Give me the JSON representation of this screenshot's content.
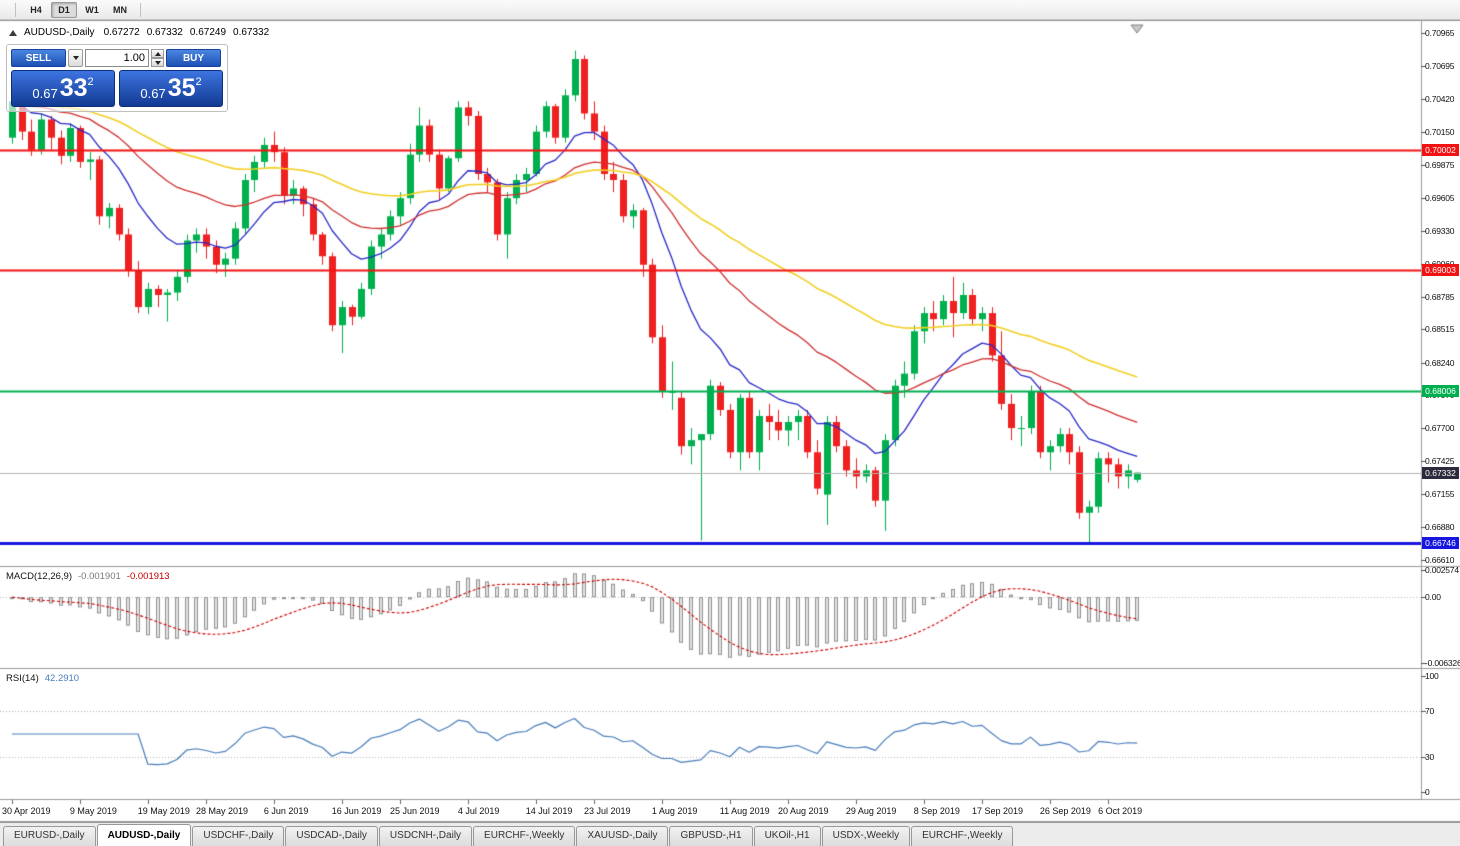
{
  "toolbar": {
    "timeframes": [
      {
        "label": "H4",
        "active": false
      },
      {
        "label": "D1",
        "active": true
      },
      {
        "label": "W1",
        "active": false
      },
      {
        "label": "MN",
        "active": false
      }
    ]
  },
  "chart": {
    "title": "AUDUSD-,Daily",
    "ohlc": {
      "open": "0.67272",
      "high": "0.67332",
      "low": "0.67249",
      "close": "0.67332"
    },
    "trade_panel": {
      "sell_label": "SELL",
      "buy_label": "BUY",
      "volume": "1.00",
      "sell_price": {
        "prefix": "0.67",
        "pips": "33",
        "point": "2"
      },
      "buy_price": {
        "prefix": "0.67",
        "pips": "35",
        "point": "2"
      }
    },
    "price_axis_labels": [
      "0.70965",
      "0.70695",
      "0.70420",
      "0.70150",
      "0.69875",
      "0.69605",
      "0.69330",
      "0.69060",
      "0.68785",
      "0.68515",
      "0.68240",
      "0.67970",
      "0.67700",
      "0.67425",
      "0.67155",
      "0.66880",
      "0.66610"
    ],
    "hlines": [
      {
        "price": 0.70002,
        "label": "0.70002",
        "color": "#f31212",
        "width": 2
      },
      {
        "price": 0.69003,
        "label": "0.69003",
        "color": "#f31212",
        "width": 2
      },
      {
        "price": 0.68006,
        "label": "0.68006",
        "color": "#00b050",
        "width": 2
      },
      {
        "price": 0.66746,
        "label": "0.66746",
        "color": "#1616e0",
        "width": 3
      }
    ],
    "bid": {
      "price": 0.67332,
      "label": "0.67332",
      "line_color": "#b4b4b4",
      "badge_color": "#2b2b3d"
    }
  },
  "indicators": {
    "macd": {
      "label": "MACD(12,26,9)",
      "value1": "-0.001901",
      "value2": "-0.001913",
      "axis_labels": [
        {
          "value": 0.002574,
          "label": "0.002574"
        },
        {
          "value": 0,
          "label": "0.00"
        },
        {
          "value": -0.006326,
          "label": "-0.006326"
        }
      ]
    },
    "rsi": {
      "label": "RSI(14)",
      "value": "42.2910",
      "levels": [
        70,
        30
      ],
      "axis_labels": [
        {
          "value": 100,
          "label": "100"
        },
        {
          "value": 70,
          "label": "70"
        },
        {
          "value": 30,
          "label": "30"
        },
        {
          "value": 0,
          "label": "0"
        }
      ]
    }
  },
  "chart_data": {
    "type": "candlestick",
    "title": "AUDUSD-,Daily",
    "symbol": "AUDUSD",
    "timeframe": "Daily",
    "visible_price_range": [
      0.6656,
      0.7106
    ],
    "macd": {
      "fast": 12,
      "slow": 26,
      "signal": 9
    },
    "rsi_period": 14,
    "moving_averages": [
      {
        "name": "ma-fast",
        "type": "ema",
        "period": 12,
        "color": "#2929c8"
      },
      {
        "name": "ma-mid",
        "type": "ema",
        "period": 30,
        "color": "#d03030"
      },
      {
        "name": "ma-slow",
        "type": "ema",
        "period": 60,
        "color": "#f2d024"
      }
    ],
    "date_labels": [
      {
        "label": "30 Apr 2019",
        "index": 0
      },
      {
        "label": "9 May 2019",
        "index": 7
      },
      {
        "label": "19 May 2019",
        "index": 14
      },
      {
        "label": "28 May 2019",
        "index": 20
      },
      {
        "label": "6 Jun 2019",
        "index": 27
      },
      {
        "label": "16 Jun 2019",
        "index": 34
      },
      {
        "label": "25 Jun 2019",
        "index": 40
      },
      {
        "label": "4 Jul 2019",
        "index": 47
      },
      {
        "label": "14 Jul 2019",
        "index": 54
      },
      {
        "label": "23 Jul 2019",
        "index": 60
      },
      {
        "label": "1 Aug 2019",
        "index": 67
      },
      {
        "label": "11 Aug 2019",
        "index": 74
      },
      {
        "label": "20 Aug 2019",
        "index": 80
      },
      {
        "label": "29 Aug 2019",
        "index": 87
      },
      {
        "label": "8 Sep 2019",
        "index": 94
      },
      {
        "label": "17 Sep 2019",
        "index": 100
      },
      {
        "label": "26 Sep 2019",
        "index": 107
      },
      {
        "label": "6 Oct 2019",
        "index": 113
      }
    ],
    "candles": [
      [
        0.701,
        0.7048,
        0.7005,
        0.704
      ],
      [
        0.704,
        0.7045,
        0.7008,
        0.7015
      ],
      [
        0.7015,
        0.7025,
        0.6995,
        0.7
      ],
      [
        0.7,
        0.703,
        0.6996,
        0.7025
      ],
      [
        0.7025,
        0.7028,
        0.7,
        0.701
      ],
      [
        0.701,
        0.7016,
        0.6988,
        0.6995
      ],
      [
        0.6995,
        0.7022,
        0.699,
        0.7018
      ],
      [
        0.7018,
        0.702,
        0.6985,
        0.699
      ],
      [
        0.699,
        0.6998,
        0.6975,
        0.6992
      ],
      [
        0.6992,
        0.6995,
        0.6938,
        0.6945
      ],
      [
        0.6945,
        0.6956,
        0.6935,
        0.6952
      ],
      [
        0.6952,
        0.6955,
        0.6925,
        0.693
      ],
      [
        0.693,
        0.6935,
        0.6895,
        0.69
      ],
      [
        0.69,
        0.6908,
        0.6865,
        0.687
      ],
      [
        0.687,
        0.689,
        0.6864,
        0.6885
      ],
      [
        0.6885,
        0.6888,
        0.687,
        0.688
      ],
      [
        0.688,
        0.6885,
        0.6858,
        0.6882
      ],
      [
        0.6882,
        0.69,
        0.6875,
        0.6895
      ],
      [
        0.6895,
        0.693,
        0.689,
        0.6925
      ],
      [
        0.6925,
        0.6935,
        0.6915,
        0.693
      ],
      [
        0.693,
        0.6935,
        0.691,
        0.692
      ],
      [
        0.692,
        0.6925,
        0.6898,
        0.6905
      ],
      [
        0.6905,
        0.6915,
        0.6895,
        0.691
      ],
      [
        0.691,
        0.694,
        0.6905,
        0.6935
      ],
      [
        0.6935,
        0.698,
        0.693,
        0.6975
      ],
      [
        0.6975,
        0.6995,
        0.6965,
        0.699
      ],
      [
        0.699,
        0.701,
        0.6985,
        0.7004
      ],
      [
        0.7004,
        0.7015,
        0.699,
        0.6998
      ],
      [
        0.6998,
        0.7002,
        0.6955,
        0.6962
      ],
      [
        0.6962,
        0.6975,
        0.6955,
        0.6968
      ],
      [
        0.6968,
        0.697,
        0.6945,
        0.6955
      ],
      [
        0.6955,
        0.696,
        0.6925,
        0.693
      ],
      [
        0.693,
        0.6932,
        0.6905,
        0.6912
      ],
      [
        0.6912,
        0.6915,
        0.685,
        0.6855
      ],
      [
        0.6855,
        0.6875,
        0.6832,
        0.687
      ],
      [
        0.687,
        0.6872,
        0.6855,
        0.6862
      ],
      [
        0.6862,
        0.689,
        0.686,
        0.6885
      ],
      [
        0.6885,
        0.6925,
        0.688,
        0.692
      ],
      [
        0.692,
        0.6935,
        0.691,
        0.693
      ],
      [
        0.693,
        0.695,
        0.6925,
        0.6945
      ],
      [
        0.6945,
        0.6965,
        0.6938,
        0.696
      ],
      [
        0.696,
        0.7005,
        0.6955,
        0.6996
      ],
      [
        0.6996,
        0.7035,
        0.699,
        0.702
      ],
      [
        0.702,
        0.7025,
        0.699,
        0.6996
      ],
      [
        0.6996,
        0.7,
        0.6958,
        0.6968
      ],
      [
        0.6968,
        0.6995,
        0.6965,
        0.6993
      ],
      [
        0.6993,
        0.704,
        0.699,
        0.7035
      ],
      [
        0.7035,
        0.704,
        0.702,
        0.7028
      ],
      [
        0.7028,
        0.7032,
        0.6975,
        0.698
      ],
      [
        0.698,
        0.6985,
        0.6965,
        0.6973
      ],
      [
        0.6973,
        0.6976,
        0.6925,
        0.693
      ],
      [
        0.693,
        0.6965,
        0.691,
        0.696
      ],
      [
        0.696,
        0.698,
        0.6955,
        0.6975
      ],
      [
        0.6975,
        0.6985,
        0.6965,
        0.698
      ],
      [
        0.698,
        0.702,
        0.6978,
        0.7015
      ],
      [
        0.7015,
        0.704,
        0.701,
        0.7036
      ],
      [
        0.7036,
        0.7038,
        0.7005,
        0.701
      ],
      [
        0.701,
        0.705,
        0.7006,
        0.7045
      ],
      [
        0.7045,
        0.7082,
        0.704,
        0.7075
      ],
      [
        0.7075,
        0.7078,
        0.7025,
        0.703
      ],
      [
        0.703,
        0.704,
        0.7008,
        0.7015
      ],
      [
        0.7015,
        0.702,
        0.6975,
        0.698
      ],
      [
        0.698,
        0.699,
        0.6965,
        0.6975
      ],
      [
        0.6975,
        0.698,
        0.694,
        0.6945
      ],
      [
        0.6945,
        0.6955,
        0.6935,
        0.695
      ],
      [
        0.695,
        0.6952,
        0.6895,
        0.6905
      ],
      [
        0.6905,
        0.691,
        0.684,
        0.6845
      ],
      [
        0.6845,
        0.6855,
        0.6795,
        0.68
      ],
      [
        0.68,
        0.6825,
        0.6785,
        0.68
      ],
      [
        0.6795,
        0.68,
        0.6748,
        0.6755
      ],
      [
        0.6755,
        0.677,
        0.674,
        0.676
      ],
      [
        0.676,
        0.6765,
        0.6677,
        0.6765
      ],
      [
        0.6765,
        0.681,
        0.676,
        0.6805
      ],
      [
        0.6805,
        0.6808,
        0.678,
        0.6785
      ],
      [
        0.6785,
        0.679,
        0.6745,
        0.675
      ],
      [
        0.675,
        0.6798,
        0.6735,
        0.6795
      ],
      [
        0.6795,
        0.68,
        0.6745,
        0.675
      ],
      [
        0.675,
        0.6785,
        0.6735,
        0.678
      ],
      [
        0.678,
        0.679,
        0.676,
        0.6775
      ],
      [
        0.6775,
        0.6785,
        0.676,
        0.6768
      ],
      [
        0.6768,
        0.678,
        0.6755,
        0.6775
      ],
      [
        0.6775,
        0.6785,
        0.676,
        0.678
      ],
      [
        0.678,
        0.6785,
        0.6745,
        0.675
      ],
      [
        0.675,
        0.676,
        0.6715,
        0.672
      ],
      [
        0.6715,
        0.678,
        0.669,
        0.6775
      ],
      [
        0.6775,
        0.678,
        0.675,
        0.6755
      ],
      [
        0.6755,
        0.676,
        0.673,
        0.6735
      ],
      [
        0.6735,
        0.6745,
        0.672,
        0.673
      ],
      [
        0.673,
        0.674,
        0.6725,
        0.6735
      ],
      [
        0.6735,
        0.6738,
        0.6705,
        0.671
      ],
      [
        0.671,
        0.6765,
        0.6685,
        0.676
      ],
      [
        0.676,
        0.681,
        0.6755,
        0.6805
      ],
      [
        0.6805,
        0.6825,
        0.6795,
        0.6815
      ],
      [
        0.6815,
        0.6855,
        0.681,
        0.685
      ],
      [
        0.685,
        0.687,
        0.684,
        0.6865
      ],
      [
        0.6865,
        0.6875,
        0.685,
        0.686
      ],
      [
        0.686,
        0.688,
        0.6855,
        0.6875
      ],
      [
        0.6875,
        0.6895,
        0.6845,
        0.6865
      ],
      [
        0.6865,
        0.689,
        0.686,
        0.688
      ],
      [
        0.688,
        0.6885,
        0.6855,
        0.686
      ],
      [
        0.686,
        0.687,
        0.685,
        0.6865
      ],
      [
        0.6865,
        0.687,
        0.6825,
        0.683
      ],
      [
        0.683,
        0.685,
        0.6785,
        0.679
      ],
      [
        0.679,
        0.6798,
        0.676,
        0.677
      ],
      [
        0.677,
        0.678,
        0.6755,
        0.677
      ],
      [
        0.677,
        0.6805,
        0.6765,
        0.68
      ],
      [
        0.68,
        0.6805,
        0.6745,
        0.675
      ],
      [
        0.675,
        0.676,
        0.6735,
        0.6755
      ],
      [
        0.6755,
        0.677,
        0.675,
        0.6765
      ],
      [
        0.6765,
        0.677,
        0.674,
        0.675
      ],
      [
        0.675,
        0.6755,
        0.6695,
        0.67
      ],
      [
        0.67,
        0.671,
        0.6674,
        0.6705
      ],
      [
        0.6705,
        0.675,
        0.67,
        0.6745
      ],
      [
        0.6745,
        0.675,
        0.6725,
        0.674
      ],
      [
        0.674,
        0.6745,
        0.672,
        0.673
      ],
      [
        0.673,
        0.674,
        0.672,
        0.6735
      ],
      [
        0.67272,
        0.67332,
        0.67249,
        0.67332
      ]
    ]
  },
  "tabs": [
    {
      "label": "EURUSD-,Daily",
      "active": false
    },
    {
      "label": "AUDUSD-,Daily",
      "active": true
    },
    {
      "label": "USDCHF-,Daily",
      "active": false
    },
    {
      "label": "USDCAD-,Daily",
      "active": false
    },
    {
      "label": "USDCNH-,Daily",
      "active": false
    },
    {
      "label": "EURCHF-,Weekly",
      "active": false
    },
    {
      "label": "XAUUSD-,Daily",
      "active": false
    },
    {
      "label": "GBPUSD-,H1",
      "active": false
    },
    {
      "label": "UKOil-,H1",
      "active": false
    },
    {
      "label": "USDX-,Weekly",
      "active": false
    },
    {
      "label": "EURCHF-,Weekly",
      "active": false
    }
  ],
  "colors": {
    "up": "#00b04e",
    "down": "#ef2020",
    "macd_hist_fill": "#e2e2e2",
    "macd_hist_stroke": "#949494",
    "macd_signal": "#d00000",
    "rsi_line": "#4a7ebb"
  }
}
